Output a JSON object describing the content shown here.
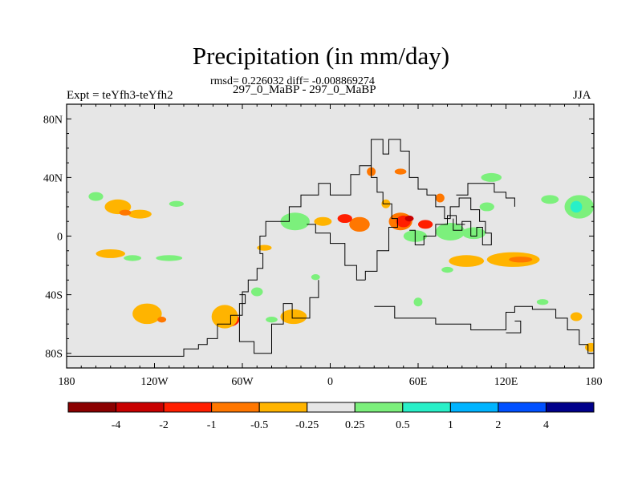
{
  "title": "Precipitation (in mm/day)",
  "stats": "rmsd= 0.226032 diff= -0.008869274",
  "expt_label": "Expt = teYfh3-teYfh2",
  "run_label": "297_0_MaBP - 297_0_MaBP",
  "season": "JJA",
  "chart_data": {
    "type": "heatmap",
    "title": "Precipitation (in mm/day)",
    "xlabel": "",
    "ylabel": "",
    "xlim": [
      -180,
      180
    ],
    "ylim": [
      -90,
      90
    ],
    "x_ticks": [
      {
        "value": -180,
        "label": "180"
      },
      {
        "value": -120,
        "label": "120W"
      },
      {
        "value": -60,
        "label": "60W"
      },
      {
        "value": 0,
        "label": "0"
      },
      {
        "value": 60,
        "label": "60E"
      },
      {
        "value": 120,
        "label": "120E"
      },
      {
        "value": 180,
        "label": "180"
      }
    ],
    "y_ticks": [
      {
        "value": 80,
        "label": "80N"
      },
      {
        "value": 40,
        "label": "40N"
      },
      {
        "value": 0,
        "label": "0"
      },
      {
        "value": -40,
        "label": "40S"
      },
      {
        "value": -80,
        "label": "80S"
      }
    ],
    "colorbar": {
      "labels": [
        "-4",
        "-2",
        "-1",
        "-0.5",
        "-0.25",
        "0.25",
        "0.5",
        "1",
        "2",
        "4"
      ],
      "colors": [
        "#8b0000",
        "#c80000",
        "#ff1e00",
        "#ff7700",
        "#ffb400",
        "#e6e6e6",
        "#7cf07c",
        "#28f0c8",
        "#00b4ff",
        "#0050ff",
        "#00008b"
      ]
    },
    "background_color": "#e6e6e6",
    "anomaly_regions": [
      {
        "lon": -145,
        "lat": 20,
        "rx": 9,
        "ry": 5,
        "color": "#ffb400"
      },
      {
        "lon": -130,
        "lat": 15,
        "rx": 8,
        "ry": 3,
        "color": "#ffb400"
      },
      {
        "lon": -160,
        "lat": 27,
        "rx": 5,
        "ry": 3,
        "color": "#7cf07c"
      },
      {
        "lon": -140,
        "lat": 16,
        "rx": 4,
        "ry": 2,
        "color": "#ff7700"
      },
      {
        "lon": -105,
        "lat": 22,
        "rx": 5,
        "ry": 2,
        "color": "#7cf07c"
      },
      {
        "lon": -150,
        "lat": -12,
        "rx": 10,
        "ry": 3,
        "color": "#ffb400"
      },
      {
        "lon": -135,
        "lat": -15,
        "rx": 6,
        "ry": 2,
        "color": "#7cf07c"
      },
      {
        "lon": -110,
        "lat": -15,
        "rx": 9,
        "ry": 2,
        "color": "#7cf07c"
      },
      {
        "lon": -45,
        "lat": -8,
        "rx": 5,
        "ry": 2,
        "color": "#ffb400"
      },
      {
        "lon": -125,
        "lat": -53,
        "rx": 10,
        "ry": 7,
        "color": "#ffb400"
      },
      {
        "lon": -115,
        "lat": -57,
        "rx": 3,
        "ry": 2,
        "color": "#ff7700"
      },
      {
        "lon": -70,
        "lat": -57,
        "rx": 8,
        "ry": 5,
        "color": "#ff1e00"
      },
      {
        "lon": -72,
        "lat": -55,
        "rx": 9,
        "ry": 8,
        "color": "#ffb400"
      },
      {
        "lon": -40,
        "lat": -57,
        "rx": 4,
        "ry": 2,
        "color": "#7cf07c"
      },
      {
        "lon": -25,
        "lat": -55,
        "rx": 9,
        "ry": 5,
        "color": "#ffb400"
      },
      {
        "lon": -50,
        "lat": -38,
        "rx": 4,
        "ry": 3,
        "color": "#7cf07c"
      },
      {
        "lon": -24,
        "lat": 10,
        "rx": 10,
        "ry": 6,
        "color": "#7cf07c"
      },
      {
        "lon": -5,
        "lat": 10,
        "rx": 6,
        "ry": 3,
        "color": "#ffb400"
      },
      {
        "lon": 20,
        "lat": 8,
        "rx": 7,
        "ry": 5,
        "color": "#ff7700"
      },
      {
        "lon": 10,
        "lat": 12,
        "rx": 5,
        "ry": 3,
        "color": "#ff1e00"
      },
      {
        "lon": 48,
        "lat": 10,
        "rx": 8,
        "ry": 6,
        "color": "#ff7700"
      },
      {
        "lon": 50,
        "lat": 10,
        "rx": 5,
        "ry": 4,
        "color": "#ff1e00"
      },
      {
        "lon": 54,
        "lat": 12,
        "rx": 3,
        "ry": 2,
        "color": "#c80000"
      },
      {
        "lon": 65,
        "lat": 8,
        "rx": 5,
        "ry": 3,
        "color": "#ff1e00"
      },
      {
        "lon": 58,
        "lat": 0,
        "rx": 8,
        "ry": 4,
        "color": "#7cf07c"
      },
      {
        "lon": 82,
        "lat": 3,
        "rx": 10,
        "ry": 6,
        "color": "#7cf07c"
      },
      {
        "lon": 98,
        "lat": 2,
        "rx": 8,
        "ry": 4,
        "color": "#7cf07c"
      },
      {
        "lon": 93,
        "lat": -17,
        "rx": 12,
        "ry": 4,
        "color": "#ffb400"
      },
      {
        "lon": 125,
        "lat": -16,
        "rx": 18,
        "ry": 5,
        "color": "#ffb400"
      },
      {
        "lon": 130,
        "lat": -16,
        "rx": 8,
        "ry": 2,
        "color": "#ff7700"
      },
      {
        "lon": 80,
        "lat": -23,
        "rx": 4,
        "ry": 2,
        "color": "#7cf07c"
      },
      {
        "lon": 170,
        "lat": 20,
        "rx": 10,
        "ry": 8,
        "color": "#7cf07c"
      },
      {
        "lon": 168,
        "lat": 20,
        "rx": 4,
        "ry": 4,
        "color": "#28f0c8"
      },
      {
        "lon": 150,
        "lat": 25,
        "rx": 6,
        "ry": 3,
        "color": "#7cf07c"
      },
      {
        "lon": 107,
        "lat": 20,
        "rx": 5,
        "ry": 3,
        "color": "#7cf07c"
      },
      {
        "lon": 110,
        "lat": 40,
        "rx": 7,
        "ry": 3,
        "color": "#7cf07c"
      },
      {
        "lon": 28,
        "lat": 44,
        "rx": 3,
        "ry": 3,
        "color": "#ff7700"
      },
      {
        "lon": 48,
        "lat": 44,
        "rx": 4,
        "ry": 2,
        "color": "#ff7700"
      },
      {
        "lon": 38,
        "lat": 22,
        "rx": 3,
        "ry": 3,
        "color": "#ffb400"
      },
      {
        "lon": 75,
        "lat": 26,
        "rx": 3,
        "ry": 3,
        "color": "#ff7700"
      },
      {
        "lon": 168,
        "lat": -55,
        "rx": 4,
        "ry": 3,
        "color": "#ffb400"
      },
      {
        "lon": 178,
        "lat": -76,
        "rx": 4,
        "ry": 3,
        "color": "#ffb400"
      },
      {
        "lon": 145,
        "lat": -45,
        "rx": 4,
        "ry": 2,
        "color": "#7cf07c"
      },
      {
        "lon": 60,
        "lat": -45,
        "rx": 3,
        "ry": 3,
        "color": "#7cf07c"
      },
      {
        "lon": -10,
        "lat": -28,
        "rx": 3,
        "ry": 2,
        "color": "#7cf07c"
      }
    ],
    "coastlines": [
      [
        [
          -180,
          -82
        ],
        [
          -100,
          -82
        ],
        [
          -100,
          -77
        ],
        [
          -90,
          -77
        ],
        [
          -90,
          -74
        ],
        [
          -84,
          -74
        ],
        [
          -84,
          -70
        ],
        [
          -77,
          -70
        ],
        [
          -77,
          -60
        ],
        [
          -68,
          -60
        ],
        [
          -68,
          -54
        ],
        [
          -60,
          -54
        ],
        [
          -60,
          -38
        ],
        [
          -56,
          -38
        ],
        [
          -56,
          -30
        ],
        [
          -50,
          -30
        ],
        [
          -50,
          -22
        ],
        [
          -46,
          -22
        ],
        [
          -46,
          -12
        ],
        [
          -48,
          -12
        ],
        [
          -48,
          0
        ],
        [
          -44,
          0
        ],
        [
          -44,
          10
        ],
        [
          -28,
          10
        ],
        [
          -28,
          20
        ],
        [
          -20,
          20
        ],
        [
          -20,
          28
        ],
        [
          -8,
          28
        ],
        [
          -8,
          36
        ],
        [
          0,
          36
        ],
        [
          0,
          28
        ],
        [
          14,
          28
        ],
        [
          14,
          42
        ],
        [
          20,
          42
        ],
        [
          20,
          48
        ],
        [
          28,
          48
        ],
        [
          28,
          40
        ],
        [
          32,
          40
        ],
        [
          32,
          30
        ],
        [
          36,
          30
        ],
        [
          36,
          22
        ],
        [
          42,
          22
        ],
        [
          42,
          12
        ],
        [
          46,
          12
        ],
        [
          46,
          6
        ],
        [
          40,
          6
        ],
        [
          40,
          -10
        ],
        [
          32,
          -10
        ],
        [
          32,
          -24
        ],
        [
          24,
          -24
        ],
        [
          24,
          -30
        ]
      ],
      [
        [
          24,
          -30
        ],
        [
          18,
          -30
        ],
        [
          18,
          -20
        ],
        [
          10,
          -20
        ],
        [
          10,
          -5
        ],
        [
          0,
          -5
        ],
        [
          0,
          2
        ],
        [
          -10,
          2
        ],
        [
          -10,
          8
        ],
        [
          -16,
          8
        ]
      ],
      [
        [
          -62,
          -40
        ],
        [
          -58,
          -40
        ],
        [
          -58,
          -46
        ],
        [
          -62,
          -46
        ],
        [
          -62,
          -72
        ],
        [
          -52,
          -72
        ],
        [
          -52,
          -80
        ],
        [
          -40,
          -80
        ],
        [
          -40,
          -60
        ],
        [
          -32,
          -60
        ],
        [
          -32,
          -46
        ],
        [
          -26,
          -46
        ],
        [
          -26,
          -56
        ],
        [
          -14,
          -56
        ],
        [
          -14,
          -42
        ],
        [
          -8,
          -42
        ],
        [
          -8,
          -30
        ]
      ],
      [
        [
          28,
          48
        ],
        [
          28,
          66
        ],
        [
          36,
          66
        ],
        [
          36,
          56
        ],
        [
          40,
          56
        ],
        [
          40,
          66
        ],
        [
          48,
          66
        ],
        [
          48,
          58
        ],
        [
          54,
          58
        ],
        [
          54,
          40
        ],
        [
          60,
          40
        ],
        [
          60,
          32
        ],
        [
          66,
          32
        ],
        [
          66,
          28
        ],
        [
          72,
          28
        ],
        [
          72,
          20
        ],
        [
          78,
          20
        ],
        [
          78,
          12
        ],
        [
          82,
          12
        ],
        [
          82,
          20
        ],
        [
          88,
          20
        ],
        [
          88,
          26
        ],
        [
          96,
          26
        ],
        [
          96,
          18
        ],
        [
          102,
          18
        ],
        [
          102,
          10
        ],
        [
          106,
          10
        ],
        [
          106,
          2
        ],
        [
          110,
          2
        ],
        [
          110,
          -6
        ],
        [
          104,
          -6
        ],
        [
          104,
          6
        ],
        [
          100,
          6
        ],
        [
          100,
          0
        ],
        [
          96,
          0
        ],
        [
          96,
          10
        ],
        [
          90,
          10
        ],
        [
          90,
          4
        ],
        [
          84,
          4
        ],
        [
          84,
          12
        ]
      ],
      [
        [
          54,
          4
        ],
        [
          58,
          4
        ],
        [
          58,
          -6
        ],
        [
          64,
          -6
        ],
        [
          64,
          0
        ],
        [
          72,
          0
        ],
        [
          72,
          8
        ],
        [
          80,
          8
        ],
        [
          80,
          14
        ],
        [
          86,
          14
        ],
        [
          86,
          8
        ],
        [
          92,
          8
        ]
      ],
      [
        [
          86,
          28
        ],
        [
          94,
          28
        ],
        [
          94,
          36
        ],
        [
          112,
          36
        ],
        [
          112,
          30
        ],
        [
          120,
          30
        ],
        [
          120,
          26
        ],
        [
          126,
          26
        ],
        [
          126,
          20
        ]
      ],
      [
        [
          30,
          -48
        ],
        [
          44,
          -48
        ],
        [
          44,
          -56
        ],
        [
          72,
          -56
        ],
        [
          72,
          -60
        ],
        [
          96,
          -60
        ],
        [
          96,
          -64
        ],
        [
          120,
          -64
        ],
        [
          120,
          -52
        ],
        [
          126,
          -52
        ],
        [
          126,
          -48
        ],
        [
          138,
          -48
        ],
        [
          138,
          -50
        ],
        [
          154,
          -50
        ],
        [
          154,
          -56
        ],
        [
          162,
          -56
        ],
        [
          162,
          -64
        ],
        [
          170,
          -64
        ],
        [
          170,
          -74
        ],
        [
          176,
          -74
        ],
        [
          176,
          -80
        ],
        [
          180,
          -80
        ]
      ],
      [
        [
          126,
          -58
        ],
        [
          130,
          -58
        ],
        [
          130,
          -66
        ],
        [
          120,
          -66
        ]
      ]
    ]
  }
}
